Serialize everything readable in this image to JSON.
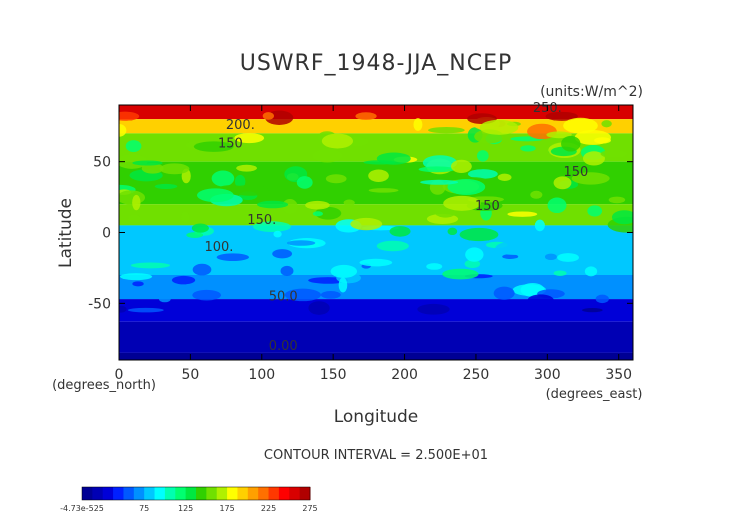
{
  "chart_data": {
    "type": "heatmap",
    "title": "USWRF_1948-JJA_NCEP",
    "units_label": "(units:W/m^2)",
    "xlabel": "Longitude",
    "ylabel": "Latitude",
    "x_unit_label": "(degrees_east)",
    "y_unit_label": "(degrees_north)",
    "xlim": [
      0,
      360
    ],
    "ylim": [
      -90,
      90
    ],
    "x_ticks": [
      0,
      50,
      100,
      150,
      200,
      250,
      300,
      350
    ],
    "y_ticks": [
      -50,
      0,
      50
    ],
    "contour_interval_text": "CONTOUR INTERVAL = 2.500E+01",
    "colorbar": {
      "tick_labels": [
        "-4.73e-525",
        "75",
        "125",
        "175",
        "225",
        "275"
      ],
      "tick_values": [
        0,
        75,
        125,
        175,
        225,
        275
      ],
      "range": [
        0,
        275
      ],
      "colors": [
        "#000094",
        "#0000b4",
        "#0000d8",
        "#0020ff",
        "#0058ff",
        "#0090ff",
        "#00c8ff",
        "#00ffff",
        "#00ffb0",
        "#00ff70",
        "#00e840",
        "#30d000",
        "#70e000",
        "#b0f000",
        "#ffff00",
        "#ffd000",
        "#ffa000",
        "#ff7000",
        "#ff3800",
        "#ff0000",
        "#d80000",
        "#b00000"
      ]
    },
    "contour_labels": [
      {
        "text": "250.",
        "lon": 300,
        "lat": 85
      },
      {
        "text": "200.",
        "lon": 85,
        "lat": 73
      },
      {
        "text": "150",
        "lon": 78,
        "lat": 60
      },
      {
        "text": "150",
        "lon": 320,
        "lat": 40
      },
      {
        "text": "150",
        "lon": 258,
        "lat": 16
      },
      {
        "text": "150.",
        "lon": 100,
        "lat": 6
      },
      {
        "text": "100.",
        "lon": 70,
        "lat": -13
      },
      {
        "text": "50.0",
        "lon": 115,
        "lat": -48
      },
      {
        "text": "0.00",
        "lon": 115,
        "lat": -83
      }
    ],
    "bands": [
      {
        "lat_min": 80,
        "lat_max": 90,
        "value": 250
      },
      {
        "lat_min": 70,
        "lat_max": 80,
        "value": 190
      },
      {
        "lat_min": 50,
        "lat_max": 70,
        "value": 150
      },
      {
        "lat_min": 20,
        "lat_max": 50,
        "value": 140
      },
      {
        "lat_min": 5,
        "lat_max": 20,
        "value": 150
      },
      {
        "lat_min": -5,
        "lat_max": 5,
        "value": 120
      },
      {
        "lat_min": -30,
        "lat_max": 5,
        "value": 85
      },
      {
        "lat_min": -47,
        "lat_max": -30,
        "value": 70
      },
      {
        "lat_min": -63,
        "lat_max": -47,
        "value": 30
      },
      {
        "lat_min": -85,
        "lat_max": -63,
        "value": 15
      },
      {
        "lat_min": -90,
        "lat_max": -85,
        "value": 0
      }
    ],
    "grid": false
  }
}
